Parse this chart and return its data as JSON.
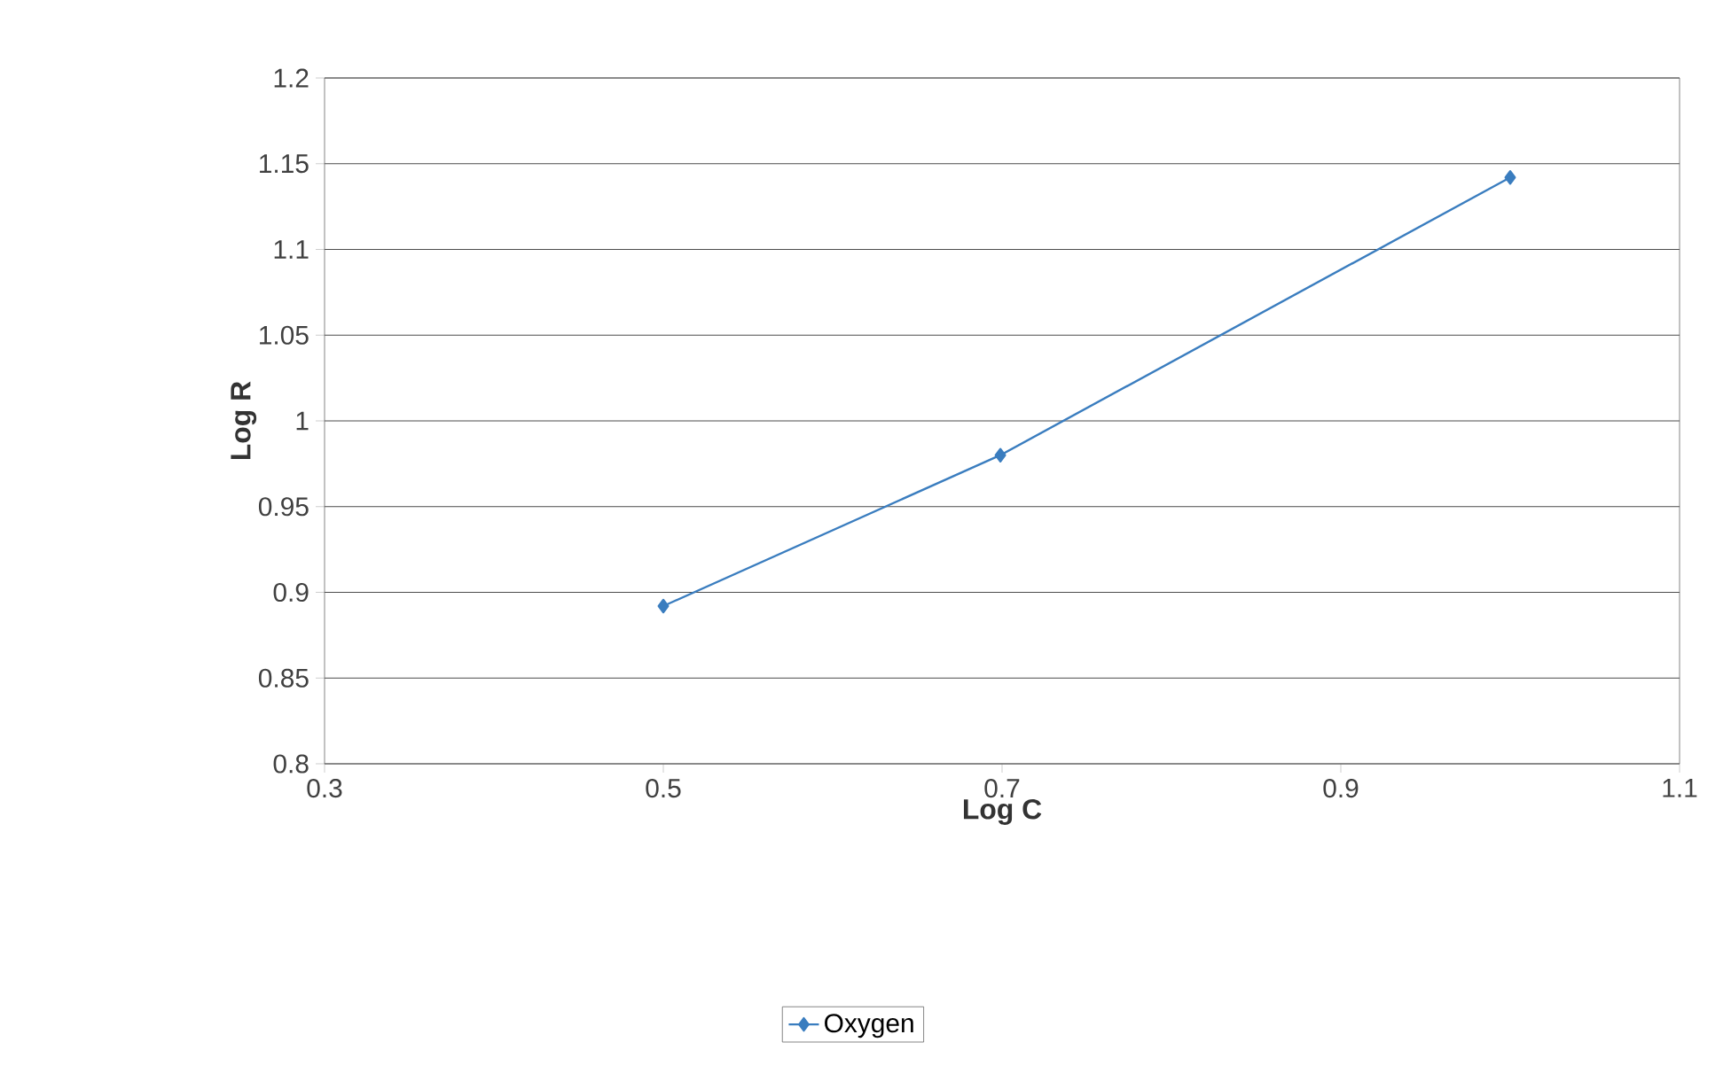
{
  "chart_data": {
    "type": "line",
    "xlabel": "Log C",
    "ylabel": "Log R",
    "xlim": [
      0.3,
      1.1
    ],
    "xticks": [
      0.3,
      0.5,
      0.7,
      0.9,
      1.1
    ],
    "ylim": [
      0.8,
      1.2
    ],
    "yticks": [
      0.8,
      0.85,
      0.9,
      0.95,
      1,
      1.05,
      1.1,
      1.15,
      1.2
    ],
    "grid": "y",
    "legend": "bottom",
    "marker": "diamond",
    "line_style": "solid",
    "series": [
      {
        "name": "Oxygen",
        "color": "#3a7dbf",
        "x": [
          0.5,
          0.699,
          1.0
        ],
        "values": [
          0.892,
          0.98,
          1.142
        ]
      }
    ]
  }
}
